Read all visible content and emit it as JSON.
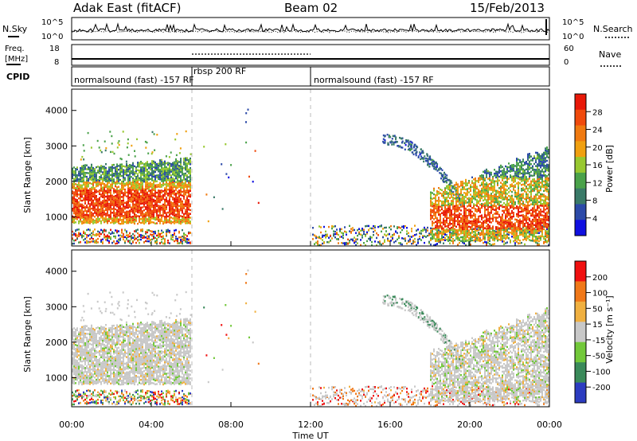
{
  "header": {
    "station": "Adak East (fitACF)",
    "beam": "Beam 02",
    "date": "15/Feb/2013"
  },
  "chart_data": [
    {
      "type": "line",
      "panel": "noise",
      "left_label": "N.Sky",
      "right_label": "N.Search",
      "y_ticks": [
        "10^5",
        "10^0"
      ],
      "scale": "log"
    },
    {
      "type": "line",
      "panel": "frequency",
      "left_label_lines": [
        "Freq.",
        "[MHz]"
      ],
      "right_label": "Nave",
      "left_ticks": [
        "18",
        "8"
      ],
      "right_ticks": [
        "60",
        "0"
      ]
    },
    {
      "type": "table",
      "panel": "cpid",
      "label": "CPID",
      "segments": [
        {
          "label": "normalsound (fast) -157 RF",
          "start_h": 0,
          "end_h": 6.1
        },
        {
          "label": "rbsp 200 RF",
          "start_h": 6.1,
          "end_h": 12.0
        },
        {
          "label": "normalsound (fast) -157 RF",
          "start_h": 12.0,
          "end_h": 24.0
        }
      ]
    },
    {
      "type": "heatmap",
      "panel": "power",
      "ylabel": "Slant Range [km]",
      "yticks": [
        "1000",
        "2000",
        "3000",
        "4000"
      ],
      "ylim": [
        180,
        4600
      ],
      "colorbar_label": "Power [dB]",
      "colorbar_ticks": [
        "4",
        "8",
        "12",
        "16",
        "20",
        "24",
        "28"
      ],
      "colorbar_range": [
        0,
        32
      ]
    },
    {
      "type": "heatmap",
      "panel": "velocity",
      "ylabel": "Slant Range [km]",
      "yticks": [
        "1000",
        "2000",
        "3000",
        "4000"
      ],
      "ylim": [
        180,
        4600
      ],
      "colorbar_label": "Velocity [m s⁻¹]",
      "colorbar_ticks": [
        "200",
        "100",
        "50",
        "15",
        "-15",
        "-50",
        "-100",
        "-200"
      ]
    }
  ],
  "time_axis": {
    "xlabel": "Time UT",
    "ticks": [
      "00:00",
      "04:00",
      "08:00",
      "12:00",
      "16:00",
      "20:00",
      "00:00"
    ],
    "xlim_h": [
      0,
      24
    ]
  },
  "colors": {
    "power": [
      "#1010e0",
      "#2c4aa8",
      "#3a7a68",
      "#4aa24a",
      "#98c830",
      "#f0a010",
      "#f07a10",
      "#f04a0c",
      "#e81808"
    ],
    "velocity": [
      "#2c3cc0",
      "#3a8a5a",
      "#72c83a",
      "#c8c8c8",
      "#f0b040",
      "#f07818",
      "#f01010"
    ]
  }
}
